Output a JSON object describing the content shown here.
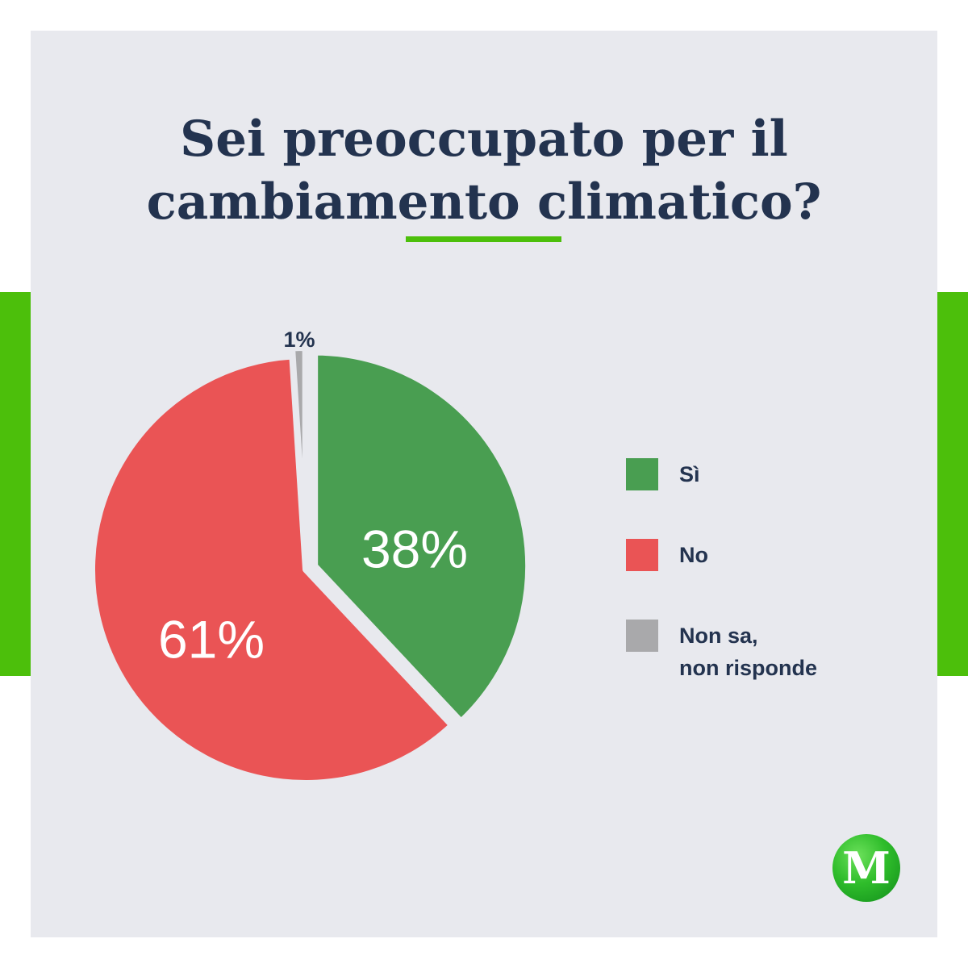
{
  "title_lines": [
    "Sei preoccupato per il",
    "cambiamento climatico?"
  ],
  "colors": {
    "background": "#e8e9ee",
    "title": "#23334f",
    "accent_green": "#4cbf0b",
    "yes": "#499e51",
    "no": "#ea5455",
    "unknown": "#a9a9ab"
  },
  "logo": {
    "letter": "M"
  },
  "chart_data": {
    "type": "pie",
    "title": "Sei preoccupato per il cambiamento climatico?",
    "slices": [
      {
        "label": "Sì",
        "value": 38,
        "value_label": "38%",
        "color": "#499e51"
      },
      {
        "label": "No",
        "value": 61,
        "value_label": "61%",
        "color": "#ea5455"
      },
      {
        "label": "Non sa,\nnon risponde",
        "value": 1,
        "value_label": "1%",
        "color": "#a9a9ab"
      }
    ],
    "legend_position": "right",
    "exploded": "Sì"
  }
}
